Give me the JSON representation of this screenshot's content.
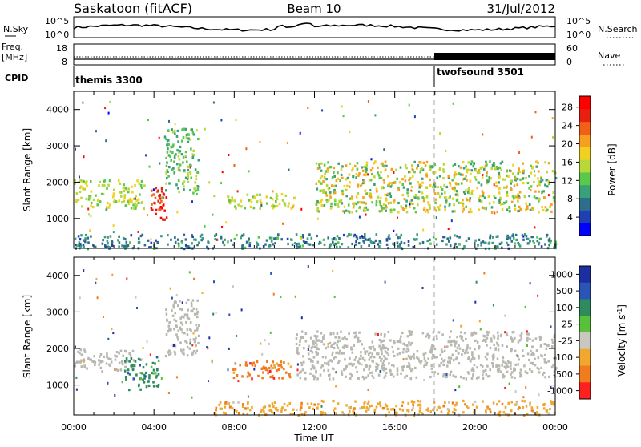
{
  "header": {
    "station": "Saskatoon (fitACF)",
    "beam": "Beam 10",
    "date": "31/Jul/2012"
  },
  "top_panels": {
    "noise_left_label": "N.Sky",
    "noise_right_label": "N.Search",
    "noise_left_ticks": [
      "10^5",
      "10^0"
    ],
    "noise_right_ticks": [
      "10^5",
      "10^0"
    ],
    "freq_label_line1": "Freq.",
    "freq_label_line2": "[MHz]",
    "freq_ticks": [
      "18",
      "8"
    ],
    "nave_label": "Nave",
    "nave_ticks": [
      "60",
      "0"
    ],
    "cpid_label": "CPID",
    "cpid_segments": [
      {
        "name": "themis 3300",
        "start_hour": 0
      },
      {
        "name": "twofsound 3501",
        "start_hour": 18
      }
    ]
  },
  "chart_data": [
    {
      "type": "heatmap",
      "title": "",
      "xlabel": "",
      "ylabel": "Slant Range [km]",
      "xlim": [
        0,
        24
      ],
      "ylim": [
        180,
        4500
      ],
      "y_ticks": [
        1000,
        2000,
        3000,
        4000
      ],
      "colorbar": {
        "label": "Power [dB]",
        "ticks": [
          "4",
          "8",
          "12",
          "16",
          "20",
          "24",
          "28"
        ],
        "colors": [
          "#0000ff",
          "#1f3fb3",
          "#2e6e8c",
          "#3aa07a",
          "#5ac84a",
          "#b8d838",
          "#f0d020",
          "#f7a020",
          "#f06018",
          "#e82010",
          "#ff0000"
        ]
      },
      "echo_regions": [
        {
          "start_hour": 0.0,
          "end_hour": 3.5,
          "range_low_km": 1300,
          "range_high_km": 2100,
          "value": "12-20 dB"
        },
        {
          "start_hour": 3.8,
          "end_hour": 4.6,
          "range_low_km": 900,
          "range_high_km": 1900,
          "value": "24-32 dB"
        },
        {
          "start_hour": 4.5,
          "end_hour": 6.2,
          "range_low_km": 1700,
          "range_high_km": 3500,
          "value": "8-16 dB"
        },
        {
          "start_hour": 7.5,
          "end_hour": 11.0,
          "range_low_km": 1300,
          "range_high_km": 1700,
          "value": "12-20 dB"
        },
        {
          "start_hour": 12.0,
          "end_hour": 24.0,
          "range_low_km": 1200,
          "range_high_km": 2600,
          "value": "8-24 dB"
        },
        {
          "start_hour": 0.0,
          "end_hour": 24.0,
          "range_low_km": 200,
          "range_high_km": 600,
          "value": "4-12 dB"
        }
      ]
    },
    {
      "type": "heatmap",
      "title": "",
      "xlabel": "Time UT",
      "ylabel": "Slant Range [km]",
      "xlim": [
        0,
        24
      ],
      "ylim": [
        180,
        4500
      ],
      "x_ticks": [
        "00:00",
        "04:00",
        "08:00",
        "12:00",
        "16:00",
        "20:00",
        "00:00"
      ],
      "y_ticks": [
        1000,
        2000,
        3000,
        4000
      ],
      "colorbar": {
        "label": "Velocity [m s^-1]",
        "ticks": [
          "1000",
          "500",
          "100",
          "25",
          "-25",
          "-100",
          "-500",
          "-1000"
        ],
        "colors": [
          "#1c2ea0",
          "#2a55b5",
          "#2f8a5e",
          "#58c03a",
          "#c8c8c0",
          "#f0a830",
          "#f07c1e",
          "#ff2020"
        ]
      },
      "ground_scatter_color": "#b8b8b0",
      "echo_regions": [
        {
          "start_hour": 0.0,
          "end_hour": 3.0,
          "range_low_km": 1400,
          "range_high_km": 2000,
          "value": "ground scatter"
        },
        {
          "start_hour": 2.5,
          "end_hour": 4.2,
          "range_low_km": 900,
          "range_high_km": 1800,
          "value": "100 to 500 m/s"
        },
        {
          "start_hour": 4.5,
          "end_hour": 6.2,
          "range_low_km": 1800,
          "range_high_km": 3400,
          "value": "ground scatter"
        },
        {
          "start_hour": 7.6,
          "end_hour": 10.8,
          "range_low_km": 1200,
          "range_high_km": 1700,
          "value": "-100 to -500 m/s"
        },
        {
          "start_hour": 11.0,
          "end_hour": 24.0,
          "range_low_km": 1200,
          "range_high_km": 2500,
          "value": "ground scatter"
        },
        {
          "start_hour": 7.0,
          "end_hour": 24.0,
          "range_low_km": 200,
          "range_high_km": 600,
          "value": "-25 to -100 m/s"
        }
      ]
    }
  ]
}
